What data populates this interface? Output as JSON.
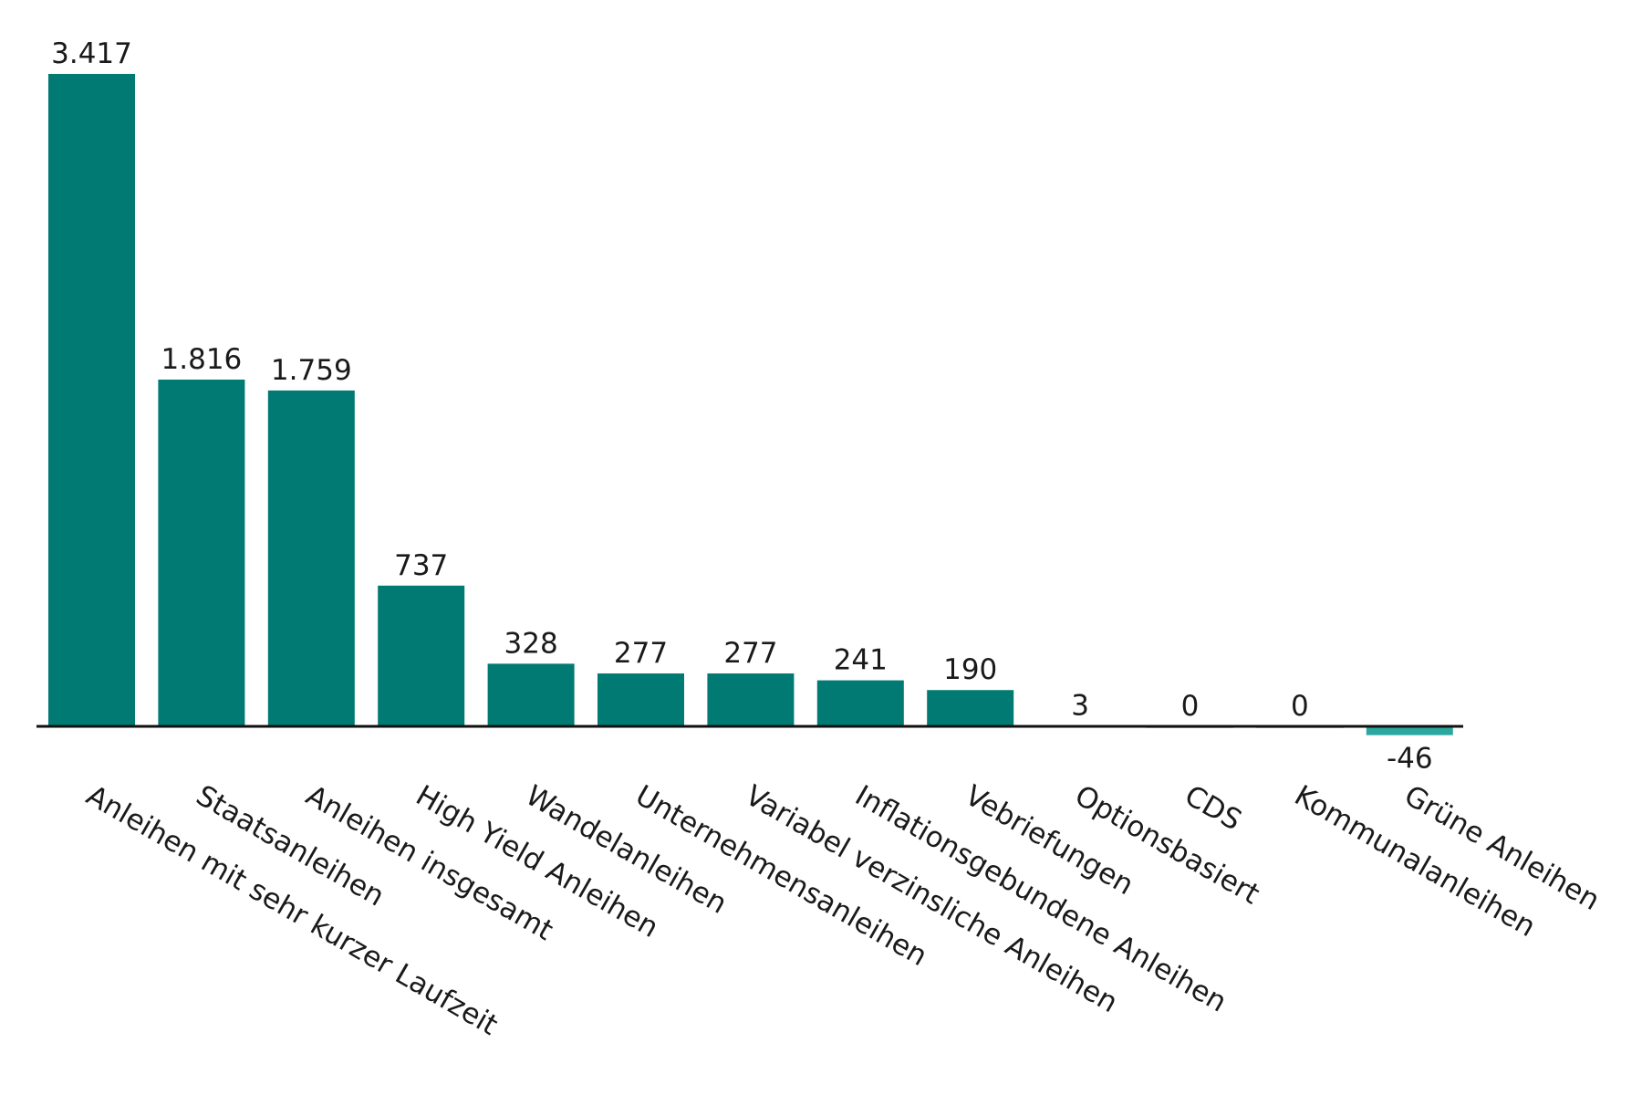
{
  "chart_data": {
    "type": "bar",
    "categories": [
      "Anleihen mit sehr kurzer Laufzeit",
      "Staatsanleihen",
      "Anleihen insgesamt",
      "High Yield Anleihen",
      "Wandelanleihen",
      "Unternehmensanleihen",
      "Variabel verzinsliche Anleihen",
      "Inflationsgebundene Anleihen",
      "Vebriefungen",
      "Optionsbasiert",
      "CDS",
      "Kommunalanleihen",
      "Grüne Anleihen"
    ],
    "values": [
      3417,
      1816,
      1759,
      737,
      328,
      277,
      277,
      241,
      190,
      3,
      0,
      0,
      -46
    ],
    "value_labels": [
      "3.417",
      "1.816",
      "1.759",
      "737",
      "328",
      "277",
      "277",
      "241",
      "190",
      "3",
      "0",
      "0",
      "-46"
    ],
    "color": "#007a72",
    "negative_color": "#2aa8a0"
  }
}
